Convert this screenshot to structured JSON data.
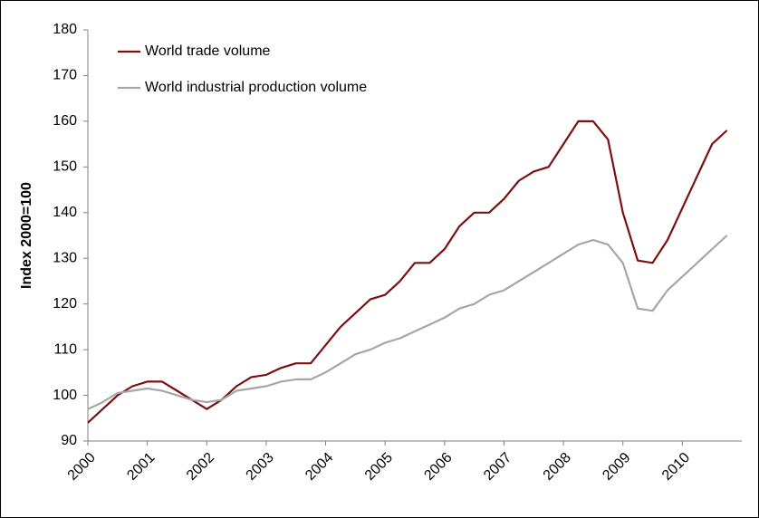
{
  "chart_data": {
    "type": "line",
    "y_label": "Index 2000=100",
    "x": [
      2000,
      2000.25,
      2000.5,
      2000.75,
      2001,
      2001.25,
      2001.5,
      2001.75,
      2002,
      2002.25,
      2002.5,
      2002.75,
      2003,
      2003.25,
      2003.5,
      2003.75,
      2004,
      2004.25,
      2004.5,
      2004.75,
      2005,
      2005.25,
      2005.5,
      2005.75,
      2006,
      2006.25,
      2006.5,
      2006.75,
      2007,
      2007.25,
      2007.5,
      2007.75,
      2008,
      2008.25,
      2008.5,
      2008.75,
      2009,
      2009.25,
      2009.5,
      2009.75,
      2010,
      2010.25,
      2010.5,
      2010.75
    ],
    "series": [
      {
        "name": "World trade volume",
        "color": "#7b1010",
        "values": [
          94,
          97,
          100,
          102,
          103,
          103,
          101,
          99,
          97,
          99,
          102,
          104,
          104.5,
          106,
          107,
          107,
          111,
          115,
          118,
          121,
          122,
          125,
          129,
          129,
          132,
          137,
          140,
          140,
          143,
          147,
          149,
          150,
          155,
          160,
          160,
          156,
          140,
          129.5,
          129,
          134,
          141,
          148,
          155,
          158
        ]
      },
      {
        "name": "World industrial production volume",
        "color": "#a6a6a6",
        "values": [
          97,
          98.5,
          100.5,
          101,
          101.5,
          101,
          100,
          99,
          98.5,
          99,
          101,
          101.5,
          102,
          103,
          103.5,
          103.5,
          105,
          107,
          109,
          110,
          111.5,
          112.5,
          114,
          115.5,
          117,
          119,
          120,
          122,
          123,
          125,
          127,
          129,
          131,
          133,
          134,
          133,
          129,
          119,
          118.5,
          123,
          126,
          129,
          132,
          135
        ]
      }
    ],
    "xlim": [
      2000,
      2011
    ],
    "xticks": [
      2000,
      2001,
      2002,
      2003,
      2004,
      2005,
      2006,
      2007,
      2008,
      2009,
      2010
    ],
    "ylim": [
      90,
      180
    ],
    "yticks": [
      90,
      100,
      110,
      120,
      130,
      140,
      150,
      160,
      170,
      180
    ],
    "grid": false,
    "legend": "top-left"
  }
}
